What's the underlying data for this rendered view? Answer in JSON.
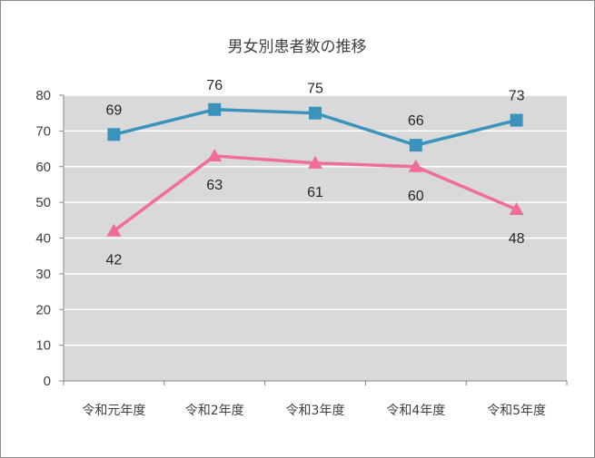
{
  "chart_data": {
    "type": "line",
    "title": "男女別患者数の推移",
    "xlabel": "",
    "ylabel": "",
    "categories": [
      "令和元年度",
      "令和2年度",
      "令和3年度",
      "令和4年度",
      "令和5年度"
    ],
    "ylim": [
      0,
      80
    ],
    "yticks": [
      "0",
      "10",
      "20",
      "30",
      "40",
      "50",
      "60",
      "70",
      "80"
    ],
    "grid": true,
    "legend": "none",
    "series": [
      {
        "values": [
          69,
          76,
          75,
          66,
          73
        ],
        "color": "#3a93bd",
        "marker": "square",
        "label_position": "above"
      },
      {
        "values": [
          42,
          63,
          61,
          60,
          48
        ],
        "color": "#f06c9b",
        "marker": "triangle",
        "label_position": "below"
      }
    ]
  }
}
